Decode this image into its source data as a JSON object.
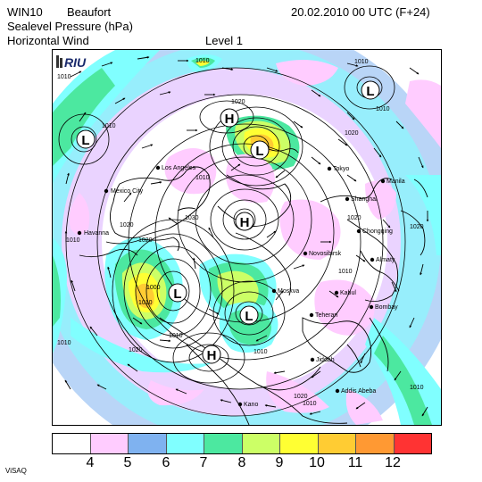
{
  "header": {
    "model": "WIN10",
    "variable": "Beaufort",
    "valid_time": "20.02.2010 00 UTC (F+24)",
    "line2": "Sealevel Pressure (hPa)",
    "line3": "Horizontal Wind",
    "level": "Level  1"
  },
  "map": {
    "logo_text": "RIU",
    "pressure_centers": [
      {
        "type": "L"
      },
      {
        "type": "L"
      },
      {
        "type": "L"
      },
      {
        "type": "L"
      },
      {
        "type": "L"
      },
      {
        "type": "H"
      },
      {
        "type": "H"
      },
      {
        "type": "H"
      }
    ],
    "isobar_labels": [
      "1010",
      "1010",
      "1010",
      "1010",
      "1020",
      "1010",
      "1020",
      "1030",
      "1020",
      "1010",
      "1020",
      "1000",
      "1010",
      "1020",
      "1010",
      "1010",
      "1020",
      "1010",
      "1010",
      "1020",
      "1010",
      "1010",
      "1010",
      "1020"
    ],
    "cities": [
      "Los Angeles",
      "Mexico City",
      "Havanna",
      "Tokyo",
      "Shanghai",
      "Manila",
      "Chongqing",
      "Almaty",
      "Novosibirsk",
      "Moskva",
      "Kabul",
      "Teheran",
      "Bombay",
      "Jiddah",
      "Addis Abeba",
      "Kano"
    ]
  },
  "legend": {
    "colors": [
      "#ffffff",
      "#ffccff",
      "#7fb2f0",
      "#80ffff",
      "#4ce8a0",
      "#ccff66",
      "#ffff33",
      "#ffcc33",
      "#ff9933",
      "#ff3333"
    ],
    "labels": [
      "4",
      "5",
      "6",
      "7",
      "8",
      "9",
      "10",
      "11",
      "12"
    ]
  },
  "footer": {
    "text": "ViSAQ"
  }
}
